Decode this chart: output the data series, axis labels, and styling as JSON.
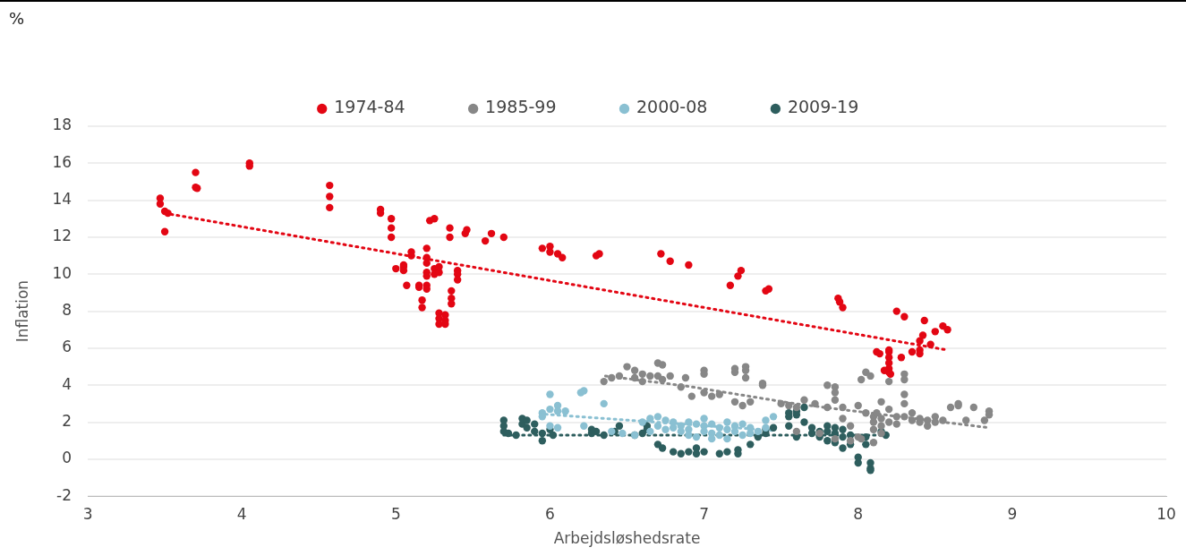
{
  "chart_data": {
    "type": "scatter",
    "xlabel": "Arbejdsløshedsrate",
    "ylabel": "Inflation",
    "annotations": [
      "%"
    ],
    "xlim": [
      3,
      10
    ],
    "xticks": [
      3,
      4,
      5,
      6,
      7,
      8,
      9,
      10
    ],
    "ylim": [
      -2,
      18
    ],
    "yticks": [
      -2,
      0,
      2,
      4,
      6,
      8,
      10,
      12,
      14,
      16,
      18
    ],
    "grid": "y",
    "legend": "top",
    "marker": "circle",
    "series": [
      {
        "name": "1974-84",
        "color": "#e30613",
        "x": [
          3.47,
          3.47,
          3.5,
          3.52,
          3.5,
          3.7,
          3.7,
          3.71,
          4.05,
          4.05,
          4.57,
          4.57,
          4.57,
          4.9,
          4.9,
          4.97,
          4.97,
          4.97,
          5.1,
          5.1,
          5.05,
          5.05,
          5.05,
          5.07,
          5.0,
          5.15,
          5.15,
          5.17,
          5.17,
          5.2,
          5.2,
          5.2,
          5.2,
          5.2,
          5.2,
          5.2,
          5.22,
          5.25,
          5.25,
          5.25,
          5.28,
          5.28,
          5.28,
          5.28,
          5.28,
          5.32,
          5.32,
          5.32,
          5.35,
          5.35,
          5.36,
          5.36,
          5.36,
          5.4,
          5.4,
          5.4,
          5.45,
          5.46,
          5.58,
          5.62,
          5.7,
          5.95,
          6.0,
          6.0,
          6.05,
          6.08,
          6.3,
          6.32,
          6.72,
          6.78,
          6.9,
          7.17,
          7.22,
          7.24,
          7.4,
          7.42,
          7.87,
          7.88,
          7.9,
          8.12,
          8.14,
          8.2,
          8.2,
          8.2,
          8.2,
          8.2,
          8.2,
          8.21,
          8.17,
          8.25,
          8.28,
          8.3,
          8.35,
          8.4,
          8.4,
          8.4,
          8.43,
          8.42,
          8.5,
          8.55,
          8.58,
          8.47
        ],
        "values": [
          14.1,
          13.8,
          13.4,
          13.3,
          12.3,
          15.5,
          14.7,
          14.65,
          16.0,
          15.85,
          14.8,
          14.2,
          13.6,
          13.5,
          13.3,
          13.0,
          12.5,
          12.0,
          11.2,
          11.0,
          10.5,
          10.4,
          10.2,
          9.4,
          10.3,
          9.4,
          9.3,
          8.6,
          8.2,
          11.4,
          10.9,
          10.6,
          10.1,
          9.9,
          9.4,
          9.2,
          12.9,
          13.0,
          10.3,
          10.0,
          10.1,
          10.4,
          7.9,
          7.6,
          7.3,
          7.8,
          7.5,
          7.3,
          12.5,
          12.0,
          9.1,
          8.7,
          8.4,
          10.2,
          10.0,
          9.7,
          12.2,
          12.4,
          11.8,
          12.2,
          12.0,
          11.4,
          11.5,
          11.2,
          11.1,
          10.9,
          11.0,
          11.1,
          11.1,
          10.7,
          10.5,
          9.4,
          9.9,
          10.2,
          9.1,
          9.2,
          8.7,
          8.5,
          8.2,
          5.8,
          5.7,
          5.9,
          5.8,
          5.5,
          5.2,
          4.9,
          4.7,
          4.6,
          4.8,
          8.0,
          5.5,
          7.7,
          5.8,
          6.4,
          5.9,
          5.7,
          7.5,
          6.7,
          6.9,
          7.2,
          7.0,
          6.2
        ]
      },
      {
        "name": "1985-99",
        "color": "#878787",
        "x": [
          6.35,
          6.4,
          6.45,
          6.5,
          6.55,
          6.55,
          6.6,
          6.6,
          6.65,
          6.7,
          6.7,
          6.73,
          6.73,
          6.78,
          6.85,
          6.88,
          6.92,
          7.0,
          7.0,
          7.0,
          7.05,
          7.1,
          7.2,
          7.2,
          7.2,
          7.25,
          7.27,
          7.27,
          7.27,
          7.3,
          7.38,
          7.38,
          7.5,
          7.55,
          7.6,
          7.65,
          7.72,
          7.8,
          7.8,
          7.85,
          7.85,
          7.85,
          7.9,
          7.9,
          7.95,
          7.95,
          8.0,
          8.0,
          8.02,
          8.02,
          8.05,
          8.05,
          8.08,
          8.1,
          8.1,
          8.1,
          8.12,
          8.15,
          8.15,
          8.15,
          8.2,
          8.2,
          8.2,
          8.25,
          8.25,
          8.3,
          8.3,
          8.3,
          8.3,
          8.3,
          8.35,
          8.35,
          8.4,
          8.4,
          8.45,
          8.45,
          8.5,
          8.5,
          8.55,
          8.6,
          8.65,
          8.65,
          8.7,
          8.75,
          8.82,
          8.85,
          8.85,
          7.6,
          7.75,
          7.85,
          8.1,
          8.15
        ],
        "values": [
          4.2,
          4.4,
          4.5,
          5.0,
          4.8,
          4.4,
          4.6,
          4.2,
          4.5,
          5.2,
          4.5,
          5.1,
          4.3,
          4.5,
          3.9,
          4.4,
          3.4,
          4.8,
          4.6,
          3.6,
          3.4,
          3.5,
          4.9,
          4.7,
          3.1,
          2.9,
          5.0,
          4.8,
          4.4,
          3.1,
          4.1,
          4.0,
          3.0,
          2.9,
          2.8,
          3.2,
          3.0,
          2.8,
          4.0,
          3.9,
          3.6,
          3.2,
          2.8,
          2.2,
          1.0,
          1.8,
          2.9,
          1.2,
          4.3,
          1.1,
          4.7,
          2.5,
          4.5,
          2.0,
          2.3,
          1.6,
          2.5,
          3.1,
          2.2,
          1.8,
          4.2,
          2.7,
          2.0,
          2.3,
          1.9,
          4.6,
          4.3,
          3.5,
          3.0,
          2.3,
          2.5,
          2.1,
          2.2,
          2.0,
          2.1,
          1.8,
          2.3,
          2.0,
          2.1,
          2.8,
          2.9,
          3.0,
          2.1,
          2.8,
          2.1,
          2.6,
          2.4,
          1.5,
          1.4,
          1.1,
          0.9,
          1.4
        ]
      },
      {
        "name": "2000-08",
        "color": "#8ac0d2",
        "x": [
          5.95,
          5.95,
          6.0,
          6.0,
          6.0,
          6.05,
          6.05,
          6.05,
          6.1,
          6.2,
          6.22,
          6.22,
          6.35,
          6.4,
          6.47,
          6.55,
          6.6,
          6.65,
          6.65,
          6.7,
          6.7,
          6.75,
          6.75,
          6.8,
          6.8,
          6.85,
          6.85,
          6.9,
          6.9,
          6.9,
          6.95,
          6.95,
          7.0,
          7.0,
          7.0,
          7.05,
          7.05,
          7.05,
          7.1,
          7.1,
          7.15,
          7.15,
          7.15,
          7.2,
          7.2,
          7.25,
          7.25,
          7.3,
          7.3,
          7.35,
          7.4,
          7.4,
          7.45
        ],
        "values": [
          2.5,
          2.3,
          3.5,
          2.7,
          1.8,
          2.9,
          2.6,
          1.7,
          2.6,
          3.6,
          3.7,
          1.8,
          3.0,
          1.5,
          1.4,
          1.3,
          2.0,
          2.2,
          1.5,
          2.3,
          1.8,
          2.1,
          1.6,
          2.0,
          1.7,
          1.8,
          1.5,
          2.0,
          1.6,
          1.3,
          1.9,
          1.2,
          2.2,
          1.8,
          1.5,
          1.9,
          1.4,
          1.1,
          1.7,
          1.3,
          2.0,
          1.6,
          1.1,
          1.8,
          1.5,
          1.9,
          1.3,
          1.7,
          1.4,
          1.5,
          2.1,
          1.7,
          2.3
        ]
      },
      {
        "name": "2009-19",
        "color": "#2e5e5e",
        "x": [
          5.7,
          5.7,
          5.7,
          5.73,
          5.78,
          5.82,
          5.82,
          5.85,
          5.85,
          5.9,
          5.9,
          5.95,
          5.95,
          6.0,
          6.02,
          6.27,
          6.27,
          6.3,
          6.35,
          6.42,
          6.45,
          6.55,
          6.6,
          6.63,
          6.63,
          6.7,
          6.73,
          6.8,
          6.85,
          6.9,
          6.95,
          6.95,
          7.0,
          7.1,
          7.15,
          7.22,
          7.22,
          7.3,
          7.35,
          7.4,
          7.4,
          7.45,
          7.55,
          7.55,
          7.55,
          7.6,
          7.6,
          7.6,
          7.65,
          7.65,
          7.7,
          7.7,
          7.75,
          7.75,
          7.8,
          7.8,
          7.8,
          7.85,
          7.85,
          7.85,
          7.9,
          7.9,
          7.9,
          7.95,
          7.95,
          8.0,
          8.0,
          8.05,
          8.05,
          8.08,
          8.08,
          8.08,
          8.15,
          8.18
        ],
        "values": [
          1.8,
          1.5,
          2.1,
          1.4,
          1.3,
          1.9,
          2.2,
          2.1,
          1.7,
          1.9,
          1.5,
          1.4,
          1.0,
          1.6,
          1.3,
          1.6,
          1.4,
          1.5,
          1.3,
          1.5,
          1.8,
          1.3,
          1.4,
          1.8,
          1.6,
          0.8,
          0.6,
          0.4,
          0.3,
          0.4,
          0.6,
          0.3,
          0.4,
          0.3,
          0.4,
          0.5,
          0.3,
          0.8,
          1.2,
          1.4,
          1.6,
          1.7,
          2.5,
          2.3,
          1.8,
          2.6,
          2.4,
          1.2,
          2.8,
          2.0,
          1.4,
          1.7,
          1.2,
          1.5,
          1.8,
          1.5,
          1.0,
          1.7,
          1.4,
          0.9,
          1.6,
          1.2,
          0.6,
          1.3,
          0.8,
          -0.2,
          0.1,
          1.2,
          0.8,
          -0.5,
          -0.6,
          -0.2,
          1.5,
          1.3
        ]
      },
      {
        "type": "line",
        "color": "#e30613",
        "line_style": "dotted",
        "marker": "none",
        "x": [
          3.5,
          8.58
        ],
        "values": [
          13.3,
          5.9
        ]
      },
      {
        "type": "line",
        "color": "#878787",
        "line_style": "dotted",
        "marker": "none",
        "x": [
          6.36,
          6.89,
          7.59,
          8.85
        ],
        "values": [
          4.5,
          3.95,
          3.0,
          1.7
        ]
      },
      {
        "type": "line",
        "color": "#8ac0d2",
        "line_style": "dotted",
        "marker": "none",
        "x": [
          5.97,
          7.45
        ],
        "values": [
          2.43,
          1.55
        ]
      },
      {
        "type": "line",
        "color": "#2e5e5e",
        "line_style": "dotted",
        "marker": "none",
        "x": [
          5.7,
          8.2
        ],
        "values": [
          1.3,
          1.3
        ]
      }
    ]
  }
}
